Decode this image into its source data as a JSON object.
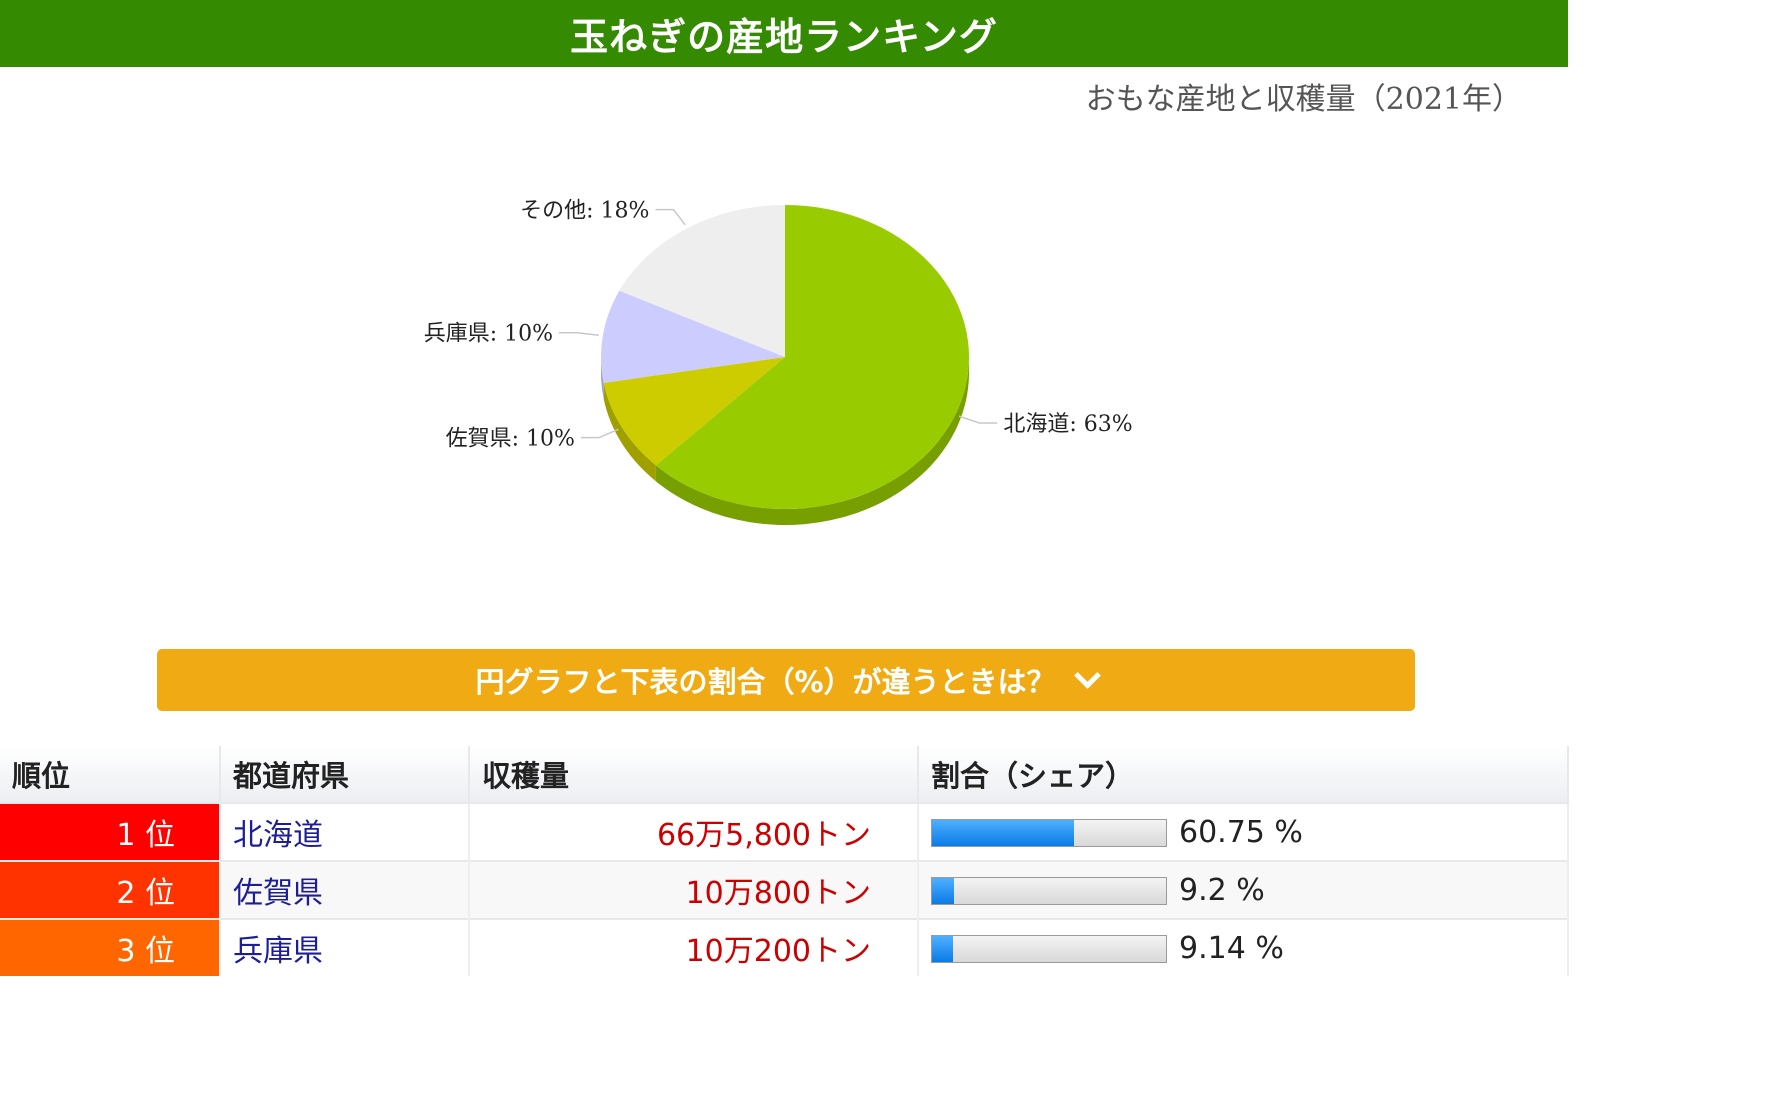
{
  "title": "玉ねぎの産地ランキング",
  "subtitle": "おもな産地と収穫量（2021年）",
  "chart_data": {
    "type": "pie",
    "slices": [
      {
        "label": "北海道",
        "value": 63,
        "color": "#99cc00"
      },
      {
        "label": "佐賀県",
        "value": 10,
        "color": "#cccc00"
      },
      {
        "label": "兵庫県",
        "value": 10,
        "color": "#ccccff"
      },
      {
        "label": "その他",
        "value": 18,
        "color": "#eeeeee"
      }
    ]
  },
  "accordion": {
    "label": "円グラフと下表の割合（%）が違うときは？"
  },
  "table": {
    "headers": [
      "順位",
      "都道府県",
      "収穫量",
      "割合（シェア）"
    ],
    "rows": [
      {
        "rank": "1 位",
        "pref": "北海道",
        "amount": "66万5,800トン",
        "share": 60.75,
        "share_label": "60.75 %",
        "rank_color": "#ff0000"
      },
      {
        "rank": "2 位",
        "pref": "佐賀県",
        "amount": "10万800トン",
        "share": 9.2,
        "share_label": "9.2 %",
        "rank_color": "#ff3300"
      },
      {
        "rank": "3 位",
        "pref": "兵庫県",
        "amount": "10万200トン",
        "share": 9.14,
        "share_label": "9.14 %",
        "rank_color": "#ff6600"
      }
    ]
  }
}
